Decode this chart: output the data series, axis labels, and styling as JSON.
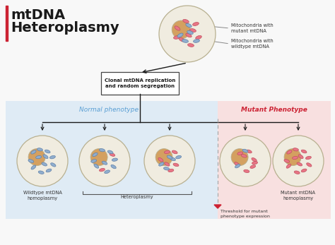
{
  "title_line1": "mtDNA",
  "title_line2": "Heteroplasmy",
  "title_color": "#1a1a1a",
  "title_bar_color": "#cc2233",
  "bg_color": "#f8f8f8",
  "normal_bg": "#ddeaf5",
  "mutant_bg": "#f9dede",
  "normal_label": "Normal phenotype",
  "mutant_label": "Mutant Phenotype",
  "normal_label_color": "#5a9fd4",
  "mutant_label_color": "#cc2233",
  "cell_outer_color": "#f0ece0",
  "cell_outer_edge": "#b8b090",
  "nucleus_color": "#d4a060",
  "mutant_mito_color": "#e87585",
  "wildtype_mito_color": "#90aece",
  "box_text": "Clonal mtDNA replication\nand random segregation",
  "label_mito_mutant": "Mitochondria with\nmutant mtDNA",
  "label_mito_wildtype": "Mitochondria with\nwildtype mtDNA",
  "label_wildtype_homo": "Wildtype mtDNA\nhomoplasmy",
  "label_heteroplasmy": "Heteroplasmy",
  "label_mutant_homo": "Mutant mtDNA\nhomoplasmy",
  "label_threshold": "Threshold for mutant\nphenotype expression",
  "threshold_color": "#cc2233",
  "arrow_color": "#1a1a1a"
}
